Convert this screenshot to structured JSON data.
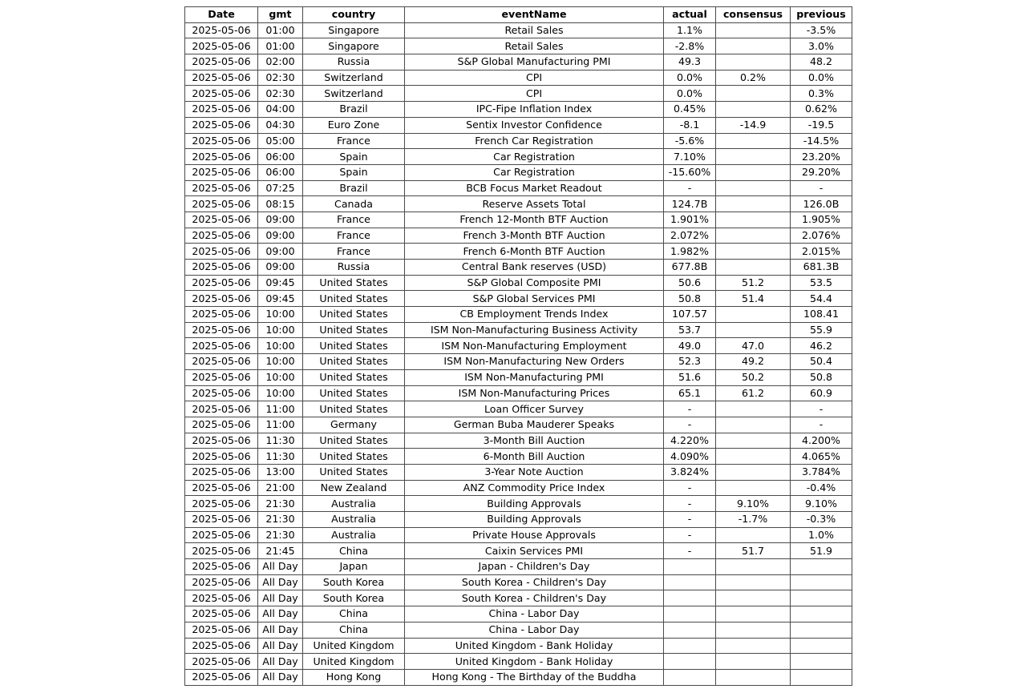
{
  "chart_data": {
    "type": "table",
    "columns": [
      "Date",
      "gmt",
      "country",
      "eventName",
      "actual",
      "consensus",
      "previous"
    ],
    "rows": [
      [
        "2025-05-06",
        "01:00",
        "Singapore",
        "Retail Sales",
        "1.1%",
        "",
        "-3.5%"
      ],
      [
        "2025-05-06",
        "01:00",
        "Singapore",
        "Retail Sales",
        "-2.8%",
        "",
        "3.0%"
      ],
      [
        "2025-05-06",
        "02:00",
        "Russia",
        "S&P Global Manufacturing PMI",
        "49.3",
        "",
        "48.2"
      ],
      [
        "2025-05-06",
        "02:30",
        "Switzerland",
        "CPI",
        "0.0%",
        "0.2%",
        "0.0%"
      ],
      [
        "2025-05-06",
        "02:30",
        "Switzerland",
        "CPI",
        "0.0%",
        "",
        "0.3%"
      ],
      [
        "2025-05-06",
        "04:00",
        "Brazil",
        "IPC-Fipe Inflation Index",
        "0.45%",
        "",
        "0.62%"
      ],
      [
        "2025-05-06",
        "04:30",
        "Euro Zone",
        "Sentix Investor Confidence",
        "-8.1",
        "-14.9",
        "-19.5"
      ],
      [
        "2025-05-06",
        "05:00",
        "France",
        "French Car Registration",
        "-5.6%",
        "",
        "-14.5%"
      ],
      [
        "2025-05-06",
        "06:00",
        "Spain",
        "Car Registration",
        "7.10%",
        "",
        "23.20%"
      ],
      [
        "2025-05-06",
        "06:00",
        "Spain",
        "Car Registration",
        "-15.60%",
        "",
        "29.20%"
      ],
      [
        "2025-05-06",
        "07:25",
        "Brazil",
        "BCB Focus Market Readout",
        "-",
        "",
        "-"
      ],
      [
        "2025-05-06",
        "08:15",
        "Canada",
        "Reserve Assets Total",
        "124.7B",
        "",
        "126.0B"
      ],
      [
        "2025-05-06",
        "09:00",
        "France",
        "French 12-Month BTF Auction",
        "1.901%",
        "",
        "1.905%"
      ],
      [
        "2025-05-06",
        "09:00",
        "France",
        "French 3-Month BTF Auction",
        "2.072%",
        "",
        "2.076%"
      ],
      [
        "2025-05-06",
        "09:00",
        "France",
        "French 6-Month BTF Auction",
        "1.982%",
        "",
        "2.015%"
      ],
      [
        "2025-05-06",
        "09:00",
        "Russia",
        "Central Bank reserves (USD)",
        "677.8B",
        "",
        "681.3B"
      ],
      [
        "2025-05-06",
        "09:45",
        "United States",
        "S&P Global Composite PMI",
        "50.6",
        "51.2",
        "53.5"
      ],
      [
        "2025-05-06",
        "09:45",
        "United States",
        "S&P Global Services PMI",
        "50.8",
        "51.4",
        "54.4"
      ],
      [
        "2025-05-06",
        "10:00",
        "United States",
        "CB Employment Trends Index",
        "107.57",
        "",
        "108.41"
      ],
      [
        "2025-05-06",
        "10:00",
        "United States",
        "ISM Non-Manufacturing Business Activity",
        "53.7",
        "",
        "55.9"
      ],
      [
        "2025-05-06",
        "10:00",
        "United States",
        "ISM Non-Manufacturing Employment",
        "49.0",
        "47.0",
        "46.2"
      ],
      [
        "2025-05-06",
        "10:00",
        "United States",
        "ISM Non-Manufacturing New Orders",
        "52.3",
        "49.2",
        "50.4"
      ],
      [
        "2025-05-06",
        "10:00",
        "United States",
        "ISM Non-Manufacturing PMI",
        "51.6",
        "50.2",
        "50.8"
      ],
      [
        "2025-05-06",
        "10:00",
        "United States",
        "ISM Non-Manufacturing Prices",
        "65.1",
        "61.2",
        "60.9"
      ],
      [
        "2025-05-06",
        "11:00",
        "United States",
        "Loan Officer Survey",
        "-",
        "",
        "-"
      ],
      [
        "2025-05-06",
        "11:00",
        "Germany",
        "German Buba Mauderer Speaks",
        "-",
        "",
        "-"
      ],
      [
        "2025-05-06",
        "11:30",
        "United States",
        "3-Month Bill Auction",
        "4.220%",
        "",
        "4.200%"
      ],
      [
        "2025-05-06",
        "11:30",
        "United States",
        "6-Month Bill Auction",
        "4.090%",
        "",
        "4.065%"
      ],
      [
        "2025-05-06",
        "13:00",
        "United States",
        "3-Year Note Auction",
        "3.824%",
        "",
        "3.784%"
      ],
      [
        "2025-05-06",
        "21:00",
        "New Zealand",
        "ANZ Commodity Price Index",
        "-",
        "",
        "-0.4%"
      ],
      [
        "2025-05-06",
        "21:30",
        "Australia",
        "Building Approvals",
        "-",
        "9.10%",
        "9.10%"
      ],
      [
        "2025-05-06",
        "21:30",
        "Australia",
        "Building Approvals",
        "-",
        "-1.7%",
        "-0.3%"
      ],
      [
        "2025-05-06",
        "21:30",
        "Australia",
        "Private House Approvals",
        "-",
        "",
        "1.0%"
      ],
      [
        "2025-05-06",
        "21:45",
        "China",
        "Caixin Services PMI",
        "-",
        "51.7",
        "51.9"
      ],
      [
        "2025-05-06",
        "All Day",
        "Japan",
        "Japan - Children's Day",
        "",
        "",
        ""
      ],
      [
        "2025-05-06",
        "All Day",
        "South Korea",
        "South Korea - Children's Day",
        "",
        "",
        ""
      ],
      [
        "2025-05-06",
        "All Day",
        "South Korea",
        "South Korea - Children's Day",
        "",
        "",
        ""
      ],
      [
        "2025-05-06",
        "All Day",
        "China",
        "China - Labor Day",
        "",
        "",
        ""
      ],
      [
        "2025-05-06",
        "All Day",
        "China",
        "China - Labor Day",
        "",
        "",
        ""
      ],
      [
        "2025-05-06",
        "All Day",
        "United Kingdom",
        "United Kingdom - Bank Holiday",
        "",
        "",
        ""
      ],
      [
        "2025-05-06",
        "All Day",
        "United Kingdom",
        "United Kingdom - Bank Holiday",
        "",
        "",
        ""
      ],
      [
        "2025-05-06",
        "All Day",
        "Hong Kong",
        "Hong Kong - The Birthday of the Buddha",
        "",
        "",
        ""
      ]
    ]
  }
}
